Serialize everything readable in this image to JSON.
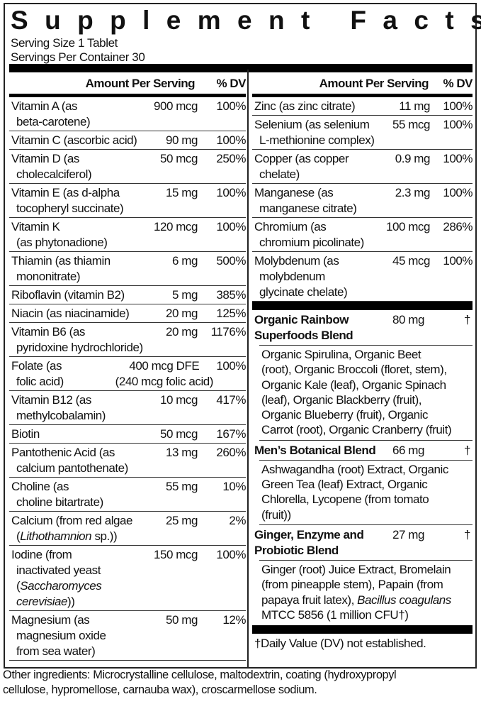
{
  "title": "Supplement Facts",
  "serving_size": "Serving Size 1 Tablet",
  "servings_per_container": "Servings Per Container 30",
  "header": {
    "amount": "Amount Per Serving",
    "dv": "% DV"
  },
  "left_rows": [
    {
      "name": [
        "Vitamin A (as\nbeta-carotene)"
      ],
      "amount": "900 mcg",
      "dv": "100%"
    },
    {
      "name": [
        "Vitamin C (ascorbic acid)"
      ],
      "amount": "90 mg",
      "dv": "100%"
    },
    {
      "name": [
        "Vitamin D (as\ncholecalciferol)"
      ],
      "amount": "50 mcg",
      "dv": "250%"
    },
    {
      "name": [
        "Vitamin E (as d-alpha\ntocopheryl succinate)"
      ],
      "amount": "15 mg",
      "dv": "100%"
    },
    {
      "name": [
        "Vitamin K\n(as phytonadione)"
      ],
      "amount": "120 mcg",
      "dv": "100%"
    },
    {
      "name": [
        "Thiamin (as thiamin\nmononitrate)"
      ],
      "amount": "6 mg",
      "dv": "500%"
    },
    {
      "name": [
        "Riboflavin (vitamin B2)"
      ],
      "amount": "5 mg",
      "dv": "385%"
    },
    {
      "name": [
        "Niacin (as niacinamide)"
      ],
      "amount": "20 mg",
      "dv": "125%"
    },
    {
      "name": [
        "Vitamin B6 (as\npyridoxine hydrochloride)"
      ],
      "amount": "20 mg",
      "dv": "1176%"
    },
    {
      "name": [
        "Folate (as\nfolic acid)"
      ],
      "amount": "400 mcg DFE\n(240 mcg folic acid)",
      "dv": "100%",
      "folate": true
    },
    {
      "name": [
        "Vitamin B12 (as\nmethylcobalamin)"
      ],
      "amount": "10 mcg",
      "dv": "417%"
    },
    {
      "name": [
        "Biotin"
      ],
      "amount": "50 mcg",
      "dv": "167%"
    },
    {
      "name": [
        "Pantothenic Acid (as\ncalcium pantothenate)"
      ],
      "amount": "13 mg",
      "dv": "260%"
    },
    {
      "name": [
        "Choline (as\ncholine bitartrate)"
      ],
      "amount": "55 mg",
      "dv": "10%"
    },
    {
      "name": [
        "Calcium (from red algae\n(",
        {
          "i": "Lithothamnion"
        },
        " sp.))"
      ],
      "amount": "25 mg",
      "dv": "2%"
    },
    {
      "name": [
        "Iodine (from\ninactivated yeast\n(",
        {
          "i": "Saccharomyces cerevisiae"
        },
        "))"
      ],
      "amount": "150 mcg",
      "dv": "100%"
    },
    {
      "name": [
        "Magnesium (as\nmagnesium oxide\nfrom sea water)"
      ],
      "amount": "50 mg",
      "dv": "12%"
    }
  ],
  "right_rows": [
    {
      "name": [
        "Zinc (as zinc citrate)"
      ],
      "amount": "11 mg",
      "dv": "100%"
    },
    {
      "name": [
        "Selenium (as selenium\nL-methionine complex)"
      ],
      "amount": "55 mcg",
      "dv": "100%"
    },
    {
      "name": [
        "Copper (as copper\nchelate)"
      ],
      "amount": "0.9 mg",
      "dv": "100%"
    },
    {
      "name": [
        "Manganese (as\nmanganese citrate)"
      ],
      "amount": "2.3 mg",
      "dv": "100%"
    },
    {
      "name": [
        "Chromium (as\nchromium picolinate)"
      ],
      "amount": "100 mcg",
      "dv": "286%"
    },
    {
      "name": [
        "Molybdenum (as\nmolybdenum\nglycinate chelate)"
      ],
      "amount": "45 mcg",
      "dv": "100%"
    }
  ],
  "blends": [
    {
      "name": "Organic Rainbow\nSuperfoods Blend",
      "amount": "80 mg",
      "dv": "†",
      "desc": [
        "Organic Spirulina, Organic Beet\n(root), Organic Broccoli (floret, stem),\nOrganic Kale (leaf), Organic Spinach\n(leaf), Organic Blackberry (fruit),\nOrganic Blueberry (fruit), Organic\nCarrot (root), Organic Cranberry (fruit)"
      ]
    },
    {
      "name": "Men’s Botanical Blend",
      "amount": "66 mg",
      "dv": "†",
      "desc": [
        "Ashwagandha (root) Extract, Organic\nGreen Tea (leaf) Extract, Organic\nChlorella, Lycopene (from tomato\n(fruit))"
      ]
    },
    {
      "name": "Ginger, Enzyme and\nProbiotic Blend",
      "amount": "27 mg",
      "dv": "†",
      "desc": [
        "Ginger (root) Juice Extract, Bromelain\n(from pineapple stem), Papain (from\npapaya fruit latex), ",
        {
          "i": "Bacillus coagulans"
        },
        "\nMTCC 5856 (1 million CFU†)"
      ]
    }
  ],
  "footnote": "†Daily Value (DV) not established.",
  "other_ingredients": "Other ingredients: Microcrystalline cellulose, maltodextrin, coating (hydroxypropyl\ncellulose, hypromellose, carnauba wax), croscarmellose sodium."
}
